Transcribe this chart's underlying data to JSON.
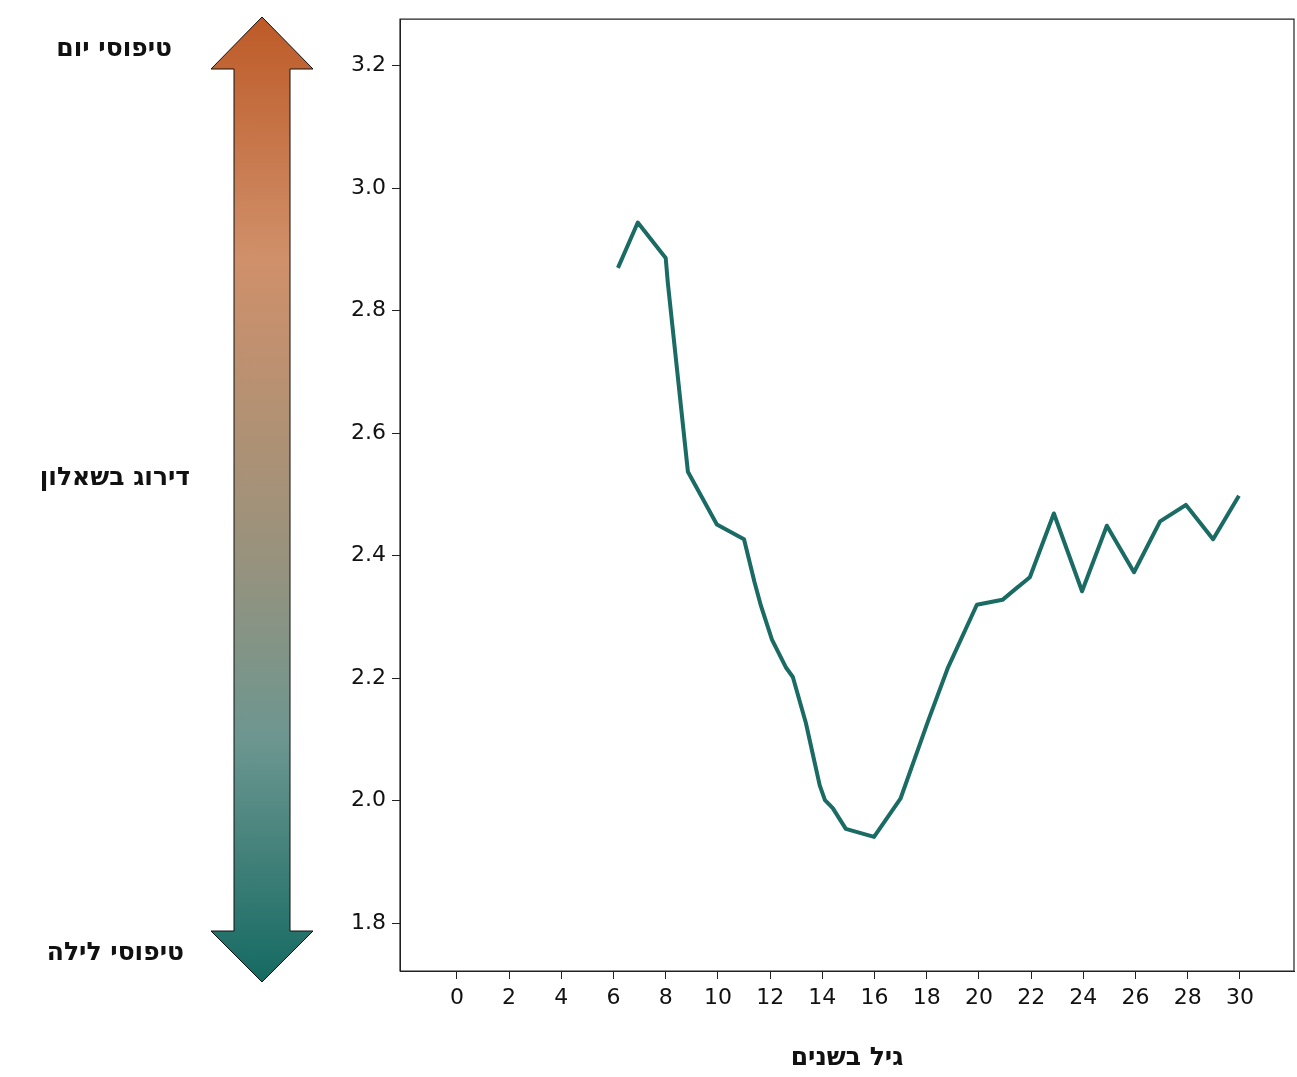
{
  "chart_data": {
    "type": "line",
    "xlabel": "גיל בשנים",
    "annotations": [
      "טיפוסי יום",
      "טיפוסי לילה",
      "דירוג בשאלון"
    ],
    "x": [
      6.17,
      6.93,
      8.0,
      8.08,
      8.85,
      9.96,
      11.0,
      11.4,
      11.65,
      12.07,
      12.6,
      12.87,
      13.37,
      13.9,
      14.1,
      14.4,
      14.9,
      15.98,
      17.0,
      18.05,
      18.8,
      19.92,
      20.9,
      21.95,
      22.87,
      23.95,
      24.9,
      25.94,
      26.94,
      27.93,
      28.97,
      29.96
    ],
    "series": [
      {
        "color": "#1a6b63",
        "values": [
          2.87,
          2.944,
          2.886,
          2.846,
          2.537,
          2.451,
          2.427,
          2.357,
          2.318,
          2.263,
          2.218,
          2.202,
          2.127,
          2.025,
          2.001,
          1.988,
          1.954,
          1.941,
          2.004,
          2.13,
          2.216,
          2.32,
          2.328,
          2.365,
          2.469,
          2.342,
          2.449,
          2.373,
          2.456,
          2.483,
          2.427,
          2.498
        ]
      }
    ],
    "xlim": [
      -2.18,
      32.07
    ],
    "ylim": [
      1.722,
      3.276
    ],
    "xticks": [
      0,
      2,
      4,
      6,
      8,
      10,
      12,
      14,
      16,
      18,
      20,
      22,
      24,
      26,
      28,
      30
    ],
    "yticks": [
      1.8,
      {
        "value": 2.0,
        "label": "2.0"
      },
      2.2,
      2.4,
      2.6,
      2.8,
      {
        "value": 3.0,
        "label": "3.0"
      },
      3.2
    ],
    "grid": false,
    "legend": false,
    "marker": "none",
    "line_style": "solid"
  }
}
